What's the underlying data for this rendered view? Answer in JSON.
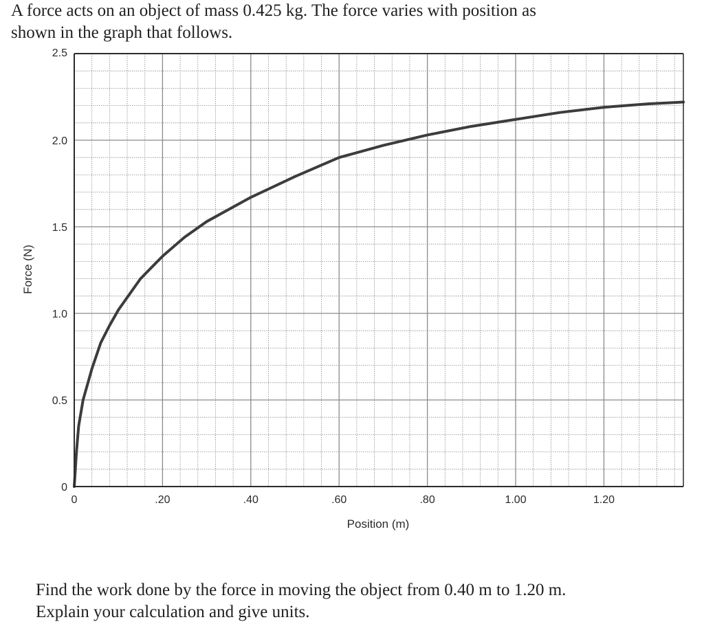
{
  "problem": {
    "intro_line1": "A force acts on an object of mass 0.425 kg. The force varies with position as",
    "intro_line2": "shown in the graph that follows.",
    "question_line1": "Find the work done by the force in moving the object from 0.40 m to 1.20 m.",
    "question_line2": "Explain your calculation and give units."
  },
  "chart_data": {
    "type": "line",
    "title": "",
    "xlabel": "Position (m)",
    "ylabel": "Force (N)",
    "xlim": [
      0,
      1.38
    ],
    "ylim": [
      0,
      2.5
    ],
    "x_ticks": [
      0,
      0.2,
      0.4,
      0.6,
      0.8,
      1.0,
      1.2
    ],
    "x_tick_labels": [
      "0",
      ".20",
      ".40",
      ".60",
      ".80",
      "1.00",
      "1.20"
    ],
    "y_ticks": [
      0,
      0.5,
      1.0,
      1.5,
      2.0,
      2.5
    ],
    "y_tick_labels": [
      "0",
      "0.5",
      "1.0",
      "1.5",
      "2.0",
      "2.5"
    ],
    "grid": true,
    "grid_minor_step_x": 0.04,
    "grid_minor_step_y": 0.1,
    "series": [
      {
        "x": [
          0,
          0.005,
          0.01,
          0.02,
          0.04,
          0.06,
          0.08,
          0.1,
          0.15,
          0.2,
          0.25,
          0.3,
          0.35,
          0.4,
          0.5,
          0.6,
          0.7,
          0.8,
          0.9,
          1.0,
          1.1,
          1.2,
          1.3,
          1.38
        ],
        "y": [
          0,
          0.2,
          0.35,
          0.5,
          0.68,
          0.83,
          0.93,
          1.02,
          1.2,
          1.33,
          1.44,
          1.53,
          1.6,
          1.67,
          1.79,
          1.9,
          1.97,
          2.03,
          2.08,
          2.12,
          2.16,
          2.19,
          2.21,
          2.22
        ]
      }
    ],
    "colors": {
      "grid": "#8a8a8a",
      "frame": "#2a2a2a",
      "curve": "#3c3c3c"
    }
  }
}
